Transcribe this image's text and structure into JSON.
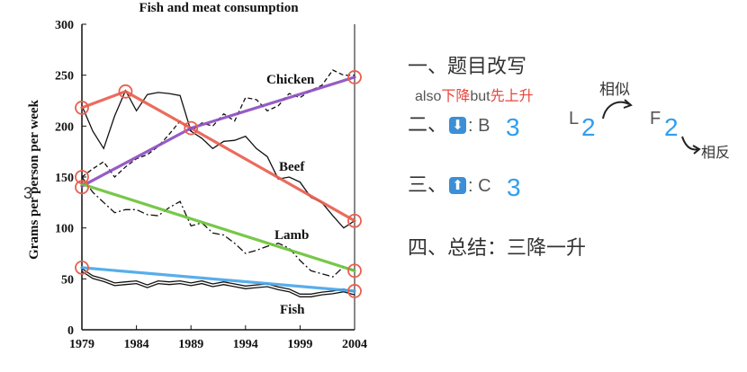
{
  "chart_data": {
    "type": "line",
    "title": "Fish and meat consumption",
    "ylabel": "Grams per person per week",
    "xlabel": "",
    "xlim": [
      1979,
      2004
    ],
    "ylim": [
      0,
      300
    ],
    "x_ticks": [
      "1979",
      "1984",
      "1989",
      "1994",
      "1999",
      "2004"
    ],
    "y_ticks": [
      "0",
      "50",
      "100",
      "150",
      "200",
      "250",
      "300"
    ],
    "series": [
      {
        "name": "Chicken",
        "style": "dashed",
        "points": [
          [
            1979,
            150
          ],
          [
            1980,
            158
          ],
          [
            1981,
            165
          ],
          [
            1982,
            150
          ],
          [
            1983,
            160
          ],
          [
            1984,
            168
          ],
          [
            1985,
            172
          ],
          [
            1986,
            180
          ],
          [
            1987,
            192
          ],
          [
            1988,
            205
          ],
          [
            1989,
            195
          ],
          [
            1990,
            203
          ],
          [
            1991,
            200
          ],
          [
            1992,
            212
          ],
          [
            1993,
            205
          ],
          [
            1994,
            228
          ],
          [
            1995,
            226
          ],
          [
            1996,
            215
          ],
          [
            1997,
            220
          ],
          [
            1998,
            232
          ],
          [
            1999,
            228
          ],
          [
            2000,
            235
          ],
          [
            2001,
            240
          ],
          [
            2002,
            255
          ],
          [
            2003,
            250
          ],
          [
            2004,
            250
          ]
        ]
      },
      {
        "name": "Beef",
        "style": "solid",
        "points": [
          [
            1979,
            220
          ],
          [
            1980,
            195
          ],
          [
            1981,
            178
          ],
          [
            1982,
            210
          ],
          [
            1983,
            235
          ],
          [
            1984,
            215
          ],
          [
            1985,
            231
          ],
          [
            1986,
            233
          ],
          [
            1987,
            232
          ],
          [
            1988,
            230
          ],
          [
            1989,
            195
          ],
          [
            1990,
            188
          ],
          [
            1991,
            178
          ],
          [
            1992,
            185
          ],
          [
            1993,
            186
          ],
          [
            1994,
            190
          ],
          [
            1995,
            178
          ],
          [
            1996,
            170
          ],
          [
            1997,
            148
          ],
          [
            1998,
            150
          ],
          [
            1999,
            145
          ],
          [
            2000,
            130
          ],
          [
            2001,
            125
          ],
          [
            2002,
            112
          ],
          [
            2003,
            100
          ],
          [
            2004,
            107
          ]
        ]
      },
      {
        "name": "Lamb",
        "style": "dashdot",
        "points": [
          [
            1979,
            150
          ],
          [
            1980,
            135
          ],
          [
            1981,
            125
          ],
          [
            1982,
            115
          ],
          [
            1983,
            118
          ],
          [
            1984,
            118
          ],
          [
            1985,
            113
          ],
          [
            1986,
            112
          ],
          [
            1987,
            120
          ],
          [
            1988,
            126
          ],
          [
            1989,
            102
          ],
          [
            1990,
            105
          ],
          [
            1991,
            95
          ],
          [
            1992,
            93
          ],
          [
            1993,
            85
          ],
          [
            1994,
            75
          ],
          [
            1995,
            78
          ],
          [
            1996,
            82
          ],
          [
            1997,
            85
          ],
          [
            1998,
            80
          ],
          [
            1999,
            68
          ],
          [
            2000,
            58
          ],
          [
            2001,
            55
          ],
          [
            2002,
            52
          ],
          [
            2003,
            62
          ],
          [
            2004,
            58
          ]
        ]
      },
      {
        "name": "Fish",
        "style": "double",
        "points": [
          [
            1979,
            60
          ],
          [
            1980,
            53
          ],
          [
            1981,
            50
          ],
          [
            1982,
            46
          ],
          [
            1983,
            47
          ],
          [
            1984,
            48
          ],
          [
            1985,
            44
          ],
          [
            1986,
            48
          ],
          [
            1987,
            47
          ],
          [
            1988,
            48
          ],
          [
            1989,
            46
          ],
          [
            1990,
            48
          ],
          [
            1991,
            45
          ],
          [
            1992,
            47
          ],
          [
            1993,
            45
          ],
          [
            1994,
            43
          ],
          [
            1995,
            44
          ],
          [
            1996,
            45
          ],
          [
            1997,
            42
          ],
          [
            1998,
            40
          ],
          [
            1999,
            35
          ],
          [
            2000,
            35
          ],
          [
            2001,
            37
          ],
          [
            2002,
            38
          ],
          [
            2003,
            40
          ],
          [
            2004,
            37
          ]
        ]
      }
    ],
    "trend_annotations": [
      {
        "color": "#e8604f",
        "points": [
          [
            1979,
            218
          ],
          [
            1983,
            234
          ],
          [
            1989,
            198
          ],
          [
            2004,
            107
          ]
        ]
      },
      {
        "color": "#8d4fc0",
        "points": [
          [
            1979,
            141
          ],
          [
            1989,
            198
          ],
          [
            2004,
            248
          ]
        ]
      },
      {
        "color": "#6cc23a",
        "points": [
          [
            1979,
            143
          ],
          [
            2004,
            58
          ]
        ]
      },
      {
        "color": "#4aa7e8",
        "points": [
          [
            1979,
            61
          ],
          [
            2004,
            38
          ]
        ]
      }
    ],
    "circle_markers": [
      [
        1979,
        218
      ],
      [
        1983,
        234
      ],
      [
        1989,
        198
      ],
      [
        2004,
        107
      ],
      [
        1979,
        150
      ],
      [
        1979,
        140
      ],
      [
        2004,
        248
      ],
      [
        2004,
        58
      ],
      [
        1979,
        61
      ],
      [
        2004,
        38
      ]
    ],
    "stray_mark": "3"
  },
  "notes": {
    "line1": "一、题目改写",
    "line2_prefix": "also",
    "line2_down": "下降",
    "line2_but": "but",
    "line2_up": "先上升",
    "line3_head": "二、",
    "line3_icon": "⬇",
    "line3_text": ": B",
    "line3_b_num": "3",
    "line3_l": "L",
    "line3_l_num": "2",
    "line3_f": "F",
    "line3_f_num": "2",
    "similar": "相似",
    "opposite": "相反",
    "line4_head": "三、",
    "line4_icon": "⬆",
    "line4_text": ": C",
    "line4_c_num": "3",
    "line5": "四、总结：三降一升"
  },
  "colors": {
    "red": "#e8453c",
    "blue": "#2f9ef0",
    "icon_bg": "#3b8fd6"
  }
}
